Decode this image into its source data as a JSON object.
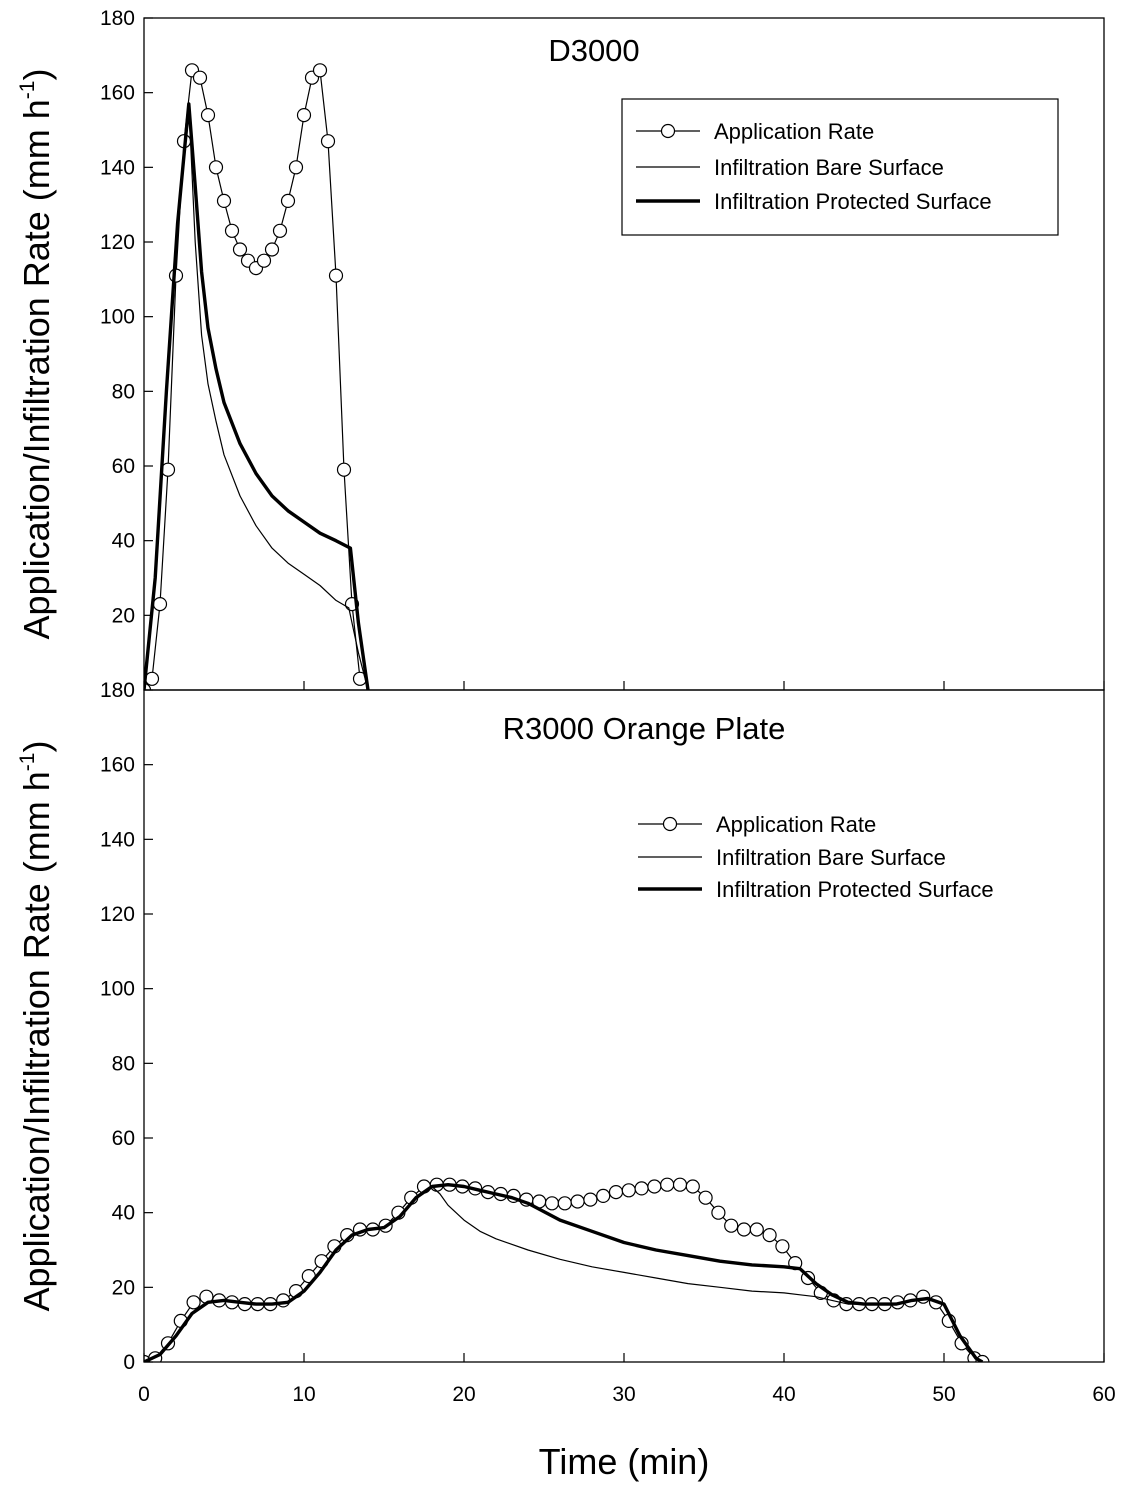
{
  "xlabel": "Time (min)",
  "ylabel": "Application/Infiltration Rate (mm h",
  "ylabel_sup": "-1",
  "ylabel_close": ")",
  "colors": {
    "line": "#000000",
    "marker_fill": "#ffffff",
    "background": "#ffffff"
  },
  "chart_data": [
    {
      "type": "line",
      "title": "D3000",
      "xlim": [
        0,
        60
      ],
      "ylim": [
        0,
        180
      ],
      "xticks": [
        0,
        10,
        20,
        30,
        40,
        50,
        60
      ],
      "yticks": [
        20,
        40,
        60,
        80,
        100,
        120,
        140,
        160,
        180
      ],
      "yticklabels": [
        "20",
        "40",
        "60",
        "80",
        "100",
        "120",
        "140",
        "160",
        "180"
      ],
      "legend_position": "upper-right",
      "legend": [
        "Application Rate",
        "Infiltration Bare Surface",
        "Infiltration Protected Surface"
      ],
      "series": [
        {
          "name": "Application Rate",
          "style": "line-circle",
          "x": [
            0.0,
            0.5,
            1.0,
            1.5,
            2.0,
            2.5,
            3.0,
            3.5,
            4.0,
            4.5,
            5.0,
            5.5,
            6.0,
            6.5,
            7.0,
            7.5,
            8.0,
            8.5,
            9.0,
            9.5,
            10.0,
            10.5,
            11.0,
            11.5,
            12.0,
            12.5,
            13.0,
            13.5
          ],
          "y": [
            0,
            3,
            23,
            59,
            111,
            147,
            166,
            164,
            154,
            140,
            131,
            123,
            118,
            115,
            113,
            115,
            118,
            123,
            131,
            140,
            154,
            164,
            166,
            147,
            111,
            59,
            23,
            3
          ]
        },
        {
          "name": "Infiltration Bare Surface",
          "style": "thin",
          "x": [
            0.0,
            0.7,
            1.4,
            2.1,
            2.8,
            3.2,
            3.6,
            4.0,
            4.5,
            5.0,
            6.0,
            7.0,
            8.0,
            9.0,
            10.0,
            11.0,
            12.0,
            12.8,
            13.4,
            14.0
          ],
          "y": [
            0,
            30,
            80,
            125,
            157,
            120,
            95,
            82,
            72,
            63,
            52,
            44,
            38,
            34,
            31,
            28,
            24,
            22,
            10,
            0
          ]
        },
        {
          "name": "Infiltration Protected Surface",
          "style": "thick",
          "x": [
            0.0,
            0.7,
            1.4,
            2.1,
            2.8,
            3.2,
            3.6,
            4.0,
            4.5,
            5.0,
            6.0,
            7.0,
            8.0,
            9.0,
            10.0,
            11.0,
            12.0,
            12.9,
            13.4,
            14.0
          ],
          "y": [
            0,
            30,
            80,
            125,
            157,
            135,
            112,
            97,
            86,
            77,
            66,
            58,
            52,
            48,
            45,
            42,
            40,
            38,
            18,
            0
          ]
        }
      ]
    },
    {
      "type": "line",
      "title": "R3000 Orange Plate",
      "xlim": [
        0,
        60
      ],
      "ylim": [
        0,
        180
      ],
      "xticks": [
        0,
        10,
        20,
        30,
        40,
        50,
        60
      ],
      "yticks": [
        0,
        20,
        40,
        60,
        80,
        100,
        120,
        140,
        160,
        180
      ],
      "yticklabels": [
        "0",
        "20",
        "40",
        "60",
        "80",
        "100",
        "120",
        "140",
        "160",
        "180"
      ],
      "legend_position": "upper-right",
      "legend": [
        "Application Rate",
        "Infiltration Bare Surface",
        "Infiltration Protected Surface"
      ],
      "series": [
        {
          "name": "Application Rate",
          "style": "line-circle",
          "x": [
            0.0,
            0.7,
            1.5,
            2.3,
            3.1,
            3.9,
            4.7,
            5.5,
            6.3,
            7.1,
            7.9,
            8.7,
            9.5,
            10.3,
            11.1,
            11.9,
            12.7,
            13.5,
            14.3,
            15.1,
            15.9,
            16.7,
            17.5,
            18.3,
            19.1,
            19.9,
            20.7,
            21.5,
            22.3,
            23.1,
            23.9,
            24.7,
            25.5,
            26.3,
            27.1,
            27.9,
            28.7,
            29.5,
            30.3,
            31.1,
            31.9,
            32.7,
            33.5,
            34.3,
            35.1,
            35.9,
            36.7,
            37.5,
            38.3,
            39.1,
            39.9,
            40.7,
            41.5,
            42.3,
            43.1,
            43.9,
            44.7,
            45.5,
            46.3,
            47.1,
            47.9,
            48.7,
            49.5,
            50.3,
            51.1,
            51.9,
            52.4
          ],
          "y": [
            0,
            1,
            5,
            11,
            16,
            17.5,
            16.5,
            16,
            15.5,
            15.5,
            15.5,
            16.5,
            19,
            23,
            27,
            31,
            34,
            35.5,
            35.5,
            36.5,
            40,
            44,
            47,
            47.5,
            47.5,
            47,
            46.5,
            45.5,
            45,
            44.5,
            43.5,
            43,
            42.5,
            42.5,
            43,
            43.5,
            44.5,
            45.5,
            46,
            46.5,
            47,
            47.5,
            47.5,
            47,
            44,
            40,
            36.5,
            35.5,
            35.5,
            34,
            31,
            26.5,
            22.5,
            18.5,
            16.5,
            15.5,
            15.5,
            15.5,
            15.5,
            16,
            16.5,
            17.5,
            16,
            11,
            5,
            1,
            0
          ]
        },
        {
          "name": "Infiltration Bare Surface",
          "style": "thin",
          "x": [
            0,
            1,
            2,
            3,
            4,
            5,
            6,
            7,
            8,
            9,
            10,
            11,
            12,
            13,
            14,
            15,
            16,
            17,
            18,
            18.5,
            19,
            20,
            21,
            22,
            24,
            26,
            28,
            30,
            32,
            34,
            36,
            38,
            40,
            41,
            42,
            43,
            44,
            45,
            46,
            47,
            48,
            49,
            50,
            51,
            52,
            52.4
          ],
          "y": [
            0,
            2,
            7,
            13,
            16,
            16.5,
            16,
            15.5,
            15.5,
            16,
            19,
            24,
            30,
            34,
            35.5,
            36,
            39,
            44,
            47,
            45,
            42,
            38,
            35,
            33,
            30,
            27.5,
            25.5,
            24,
            22.5,
            21,
            20,
            19,
            18.5,
            18,
            17.5,
            16.5,
            15.5,
            15.5,
            15.5,
            15.5,
            16.5,
            17,
            15.5,
            7,
            1,
            0
          ]
        },
        {
          "name": "Infiltration Protected Surface",
          "style": "thick",
          "x": [
            0,
            1,
            2,
            3,
            4,
            5,
            6,
            7,
            8,
            9,
            10,
            11,
            12,
            13,
            14,
            15,
            16,
            17,
            18,
            19,
            20,
            21,
            22,
            23,
            24,
            26,
            28,
            30,
            32,
            34,
            36,
            38,
            40,
            41,
            42,
            43,
            44,
            45,
            46,
            47,
            48,
            49,
            50,
            51,
            52,
            52.4
          ],
          "y": [
            0,
            2,
            7,
            13,
            16,
            16.5,
            16,
            15.5,
            15.5,
            16,
            19,
            24,
            30,
            34,
            35.5,
            36,
            39,
            44,
            47,
            47.5,
            47,
            46,
            45,
            44,
            42.5,
            38,
            35,
            32,
            30,
            28.5,
            27,
            26,
            25.5,
            25,
            21,
            18,
            16,
            15.5,
            15.5,
            15.5,
            16.5,
            17,
            15.5,
            7,
            1,
            0
          ]
        }
      ]
    }
  ]
}
